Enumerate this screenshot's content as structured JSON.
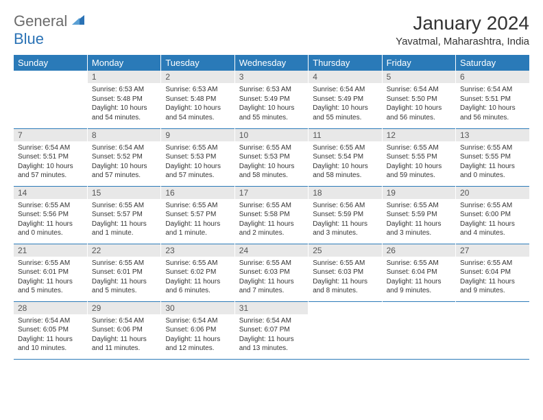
{
  "logo": {
    "textA": "General",
    "textB": "Blue"
  },
  "title": "January 2024",
  "location": "Yavatmal, Maharashtra, India",
  "colors": {
    "header_bg": "#2a7ab8",
    "header_fg": "#ffffff",
    "daynum_bg": "#e8e8e8",
    "border": "#2a7ab8",
    "body_text": "#333333",
    "logo_gray": "#6b6b6b",
    "logo_blue": "#2a72b5"
  },
  "weekdays": [
    "Sunday",
    "Monday",
    "Tuesday",
    "Wednesday",
    "Thursday",
    "Friday",
    "Saturday"
  ],
  "weeks": [
    [
      {
        "n": "",
        "sr": "",
        "ss": "",
        "dl": "",
        "empty": true
      },
      {
        "n": "1",
        "sr": "Sunrise: 6:53 AM",
        "ss": "Sunset: 5:48 PM",
        "dl": "Daylight: 10 hours and 54 minutes."
      },
      {
        "n": "2",
        "sr": "Sunrise: 6:53 AM",
        "ss": "Sunset: 5:48 PM",
        "dl": "Daylight: 10 hours and 54 minutes."
      },
      {
        "n": "3",
        "sr": "Sunrise: 6:53 AM",
        "ss": "Sunset: 5:49 PM",
        "dl": "Daylight: 10 hours and 55 minutes."
      },
      {
        "n": "4",
        "sr": "Sunrise: 6:54 AM",
        "ss": "Sunset: 5:49 PM",
        "dl": "Daylight: 10 hours and 55 minutes."
      },
      {
        "n": "5",
        "sr": "Sunrise: 6:54 AM",
        "ss": "Sunset: 5:50 PM",
        "dl": "Daylight: 10 hours and 56 minutes."
      },
      {
        "n": "6",
        "sr": "Sunrise: 6:54 AM",
        "ss": "Sunset: 5:51 PM",
        "dl": "Daylight: 10 hours and 56 minutes."
      }
    ],
    [
      {
        "n": "7",
        "sr": "Sunrise: 6:54 AM",
        "ss": "Sunset: 5:51 PM",
        "dl": "Daylight: 10 hours and 57 minutes."
      },
      {
        "n": "8",
        "sr": "Sunrise: 6:54 AM",
        "ss": "Sunset: 5:52 PM",
        "dl": "Daylight: 10 hours and 57 minutes."
      },
      {
        "n": "9",
        "sr": "Sunrise: 6:55 AM",
        "ss": "Sunset: 5:53 PM",
        "dl": "Daylight: 10 hours and 57 minutes."
      },
      {
        "n": "10",
        "sr": "Sunrise: 6:55 AM",
        "ss": "Sunset: 5:53 PM",
        "dl": "Daylight: 10 hours and 58 minutes."
      },
      {
        "n": "11",
        "sr": "Sunrise: 6:55 AM",
        "ss": "Sunset: 5:54 PM",
        "dl": "Daylight: 10 hours and 58 minutes."
      },
      {
        "n": "12",
        "sr": "Sunrise: 6:55 AM",
        "ss": "Sunset: 5:55 PM",
        "dl": "Daylight: 10 hours and 59 minutes."
      },
      {
        "n": "13",
        "sr": "Sunrise: 6:55 AM",
        "ss": "Sunset: 5:55 PM",
        "dl": "Daylight: 11 hours and 0 minutes."
      }
    ],
    [
      {
        "n": "14",
        "sr": "Sunrise: 6:55 AM",
        "ss": "Sunset: 5:56 PM",
        "dl": "Daylight: 11 hours and 0 minutes."
      },
      {
        "n": "15",
        "sr": "Sunrise: 6:55 AM",
        "ss": "Sunset: 5:57 PM",
        "dl": "Daylight: 11 hours and 1 minute."
      },
      {
        "n": "16",
        "sr": "Sunrise: 6:55 AM",
        "ss": "Sunset: 5:57 PM",
        "dl": "Daylight: 11 hours and 1 minute."
      },
      {
        "n": "17",
        "sr": "Sunrise: 6:55 AM",
        "ss": "Sunset: 5:58 PM",
        "dl": "Daylight: 11 hours and 2 minutes."
      },
      {
        "n": "18",
        "sr": "Sunrise: 6:56 AM",
        "ss": "Sunset: 5:59 PM",
        "dl": "Daylight: 11 hours and 3 minutes."
      },
      {
        "n": "19",
        "sr": "Sunrise: 6:55 AM",
        "ss": "Sunset: 5:59 PM",
        "dl": "Daylight: 11 hours and 3 minutes."
      },
      {
        "n": "20",
        "sr": "Sunrise: 6:55 AM",
        "ss": "Sunset: 6:00 PM",
        "dl": "Daylight: 11 hours and 4 minutes."
      }
    ],
    [
      {
        "n": "21",
        "sr": "Sunrise: 6:55 AM",
        "ss": "Sunset: 6:01 PM",
        "dl": "Daylight: 11 hours and 5 minutes."
      },
      {
        "n": "22",
        "sr": "Sunrise: 6:55 AM",
        "ss": "Sunset: 6:01 PM",
        "dl": "Daylight: 11 hours and 5 minutes."
      },
      {
        "n": "23",
        "sr": "Sunrise: 6:55 AM",
        "ss": "Sunset: 6:02 PM",
        "dl": "Daylight: 11 hours and 6 minutes."
      },
      {
        "n": "24",
        "sr": "Sunrise: 6:55 AM",
        "ss": "Sunset: 6:03 PM",
        "dl": "Daylight: 11 hours and 7 minutes."
      },
      {
        "n": "25",
        "sr": "Sunrise: 6:55 AM",
        "ss": "Sunset: 6:03 PM",
        "dl": "Daylight: 11 hours and 8 minutes."
      },
      {
        "n": "26",
        "sr": "Sunrise: 6:55 AM",
        "ss": "Sunset: 6:04 PM",
        "dl": "Daylight: 11 hours and 9 minutes."
      },
      {
        "n": "27",
        "sr": "Sunrise: 6:55 AM",
        "ss": "Sunset: 6:04 PM",
        "dl": "Daylight: 11 hours and 9 minutes."
      }
    ],
    [
      {
        "n": "28",
        "sr": "Sunrise: 6:54 AM",
        "ss": "Sunset: 6:05 PM",
        "dl": "Daylight: 11 hours and 10 minutes."
      },
      {
        "n": "29",
        "sr": "Sunrise: 6:54 AM",
        "ss": "Sunset: 6:06 PM",
        "dl": "Daylight: 11 hours and 11 minutes."
      },
      {
        "n": "30",
        "sr": "Sunrise: 6:54 AM",
        "ss": "Sunset: 6:06 PM",
        "dl": "Daylight: 11 hours and 12 minutes."
      },
      {
        "n": "31",
        "sr": "Sunrise: 6:54 AM",
        "ss": "Sunset: 6:07 PM",
        "dl": "Daylight: 11 hours and 13 minutes."
      },
      {
        "n": "",
        "sr": "",
        "ss": "",
        "dl": "",
        "empty": true
      },
      {
        "n": "",
        "sr": "",
        "ss": "",
        "dl": "",
        "empty": true
      },
      {
        "n": "",
        "sr": "",
        "ss": "",
        "dl": "",
        "empty": true
      }
    ]
  ]
}
